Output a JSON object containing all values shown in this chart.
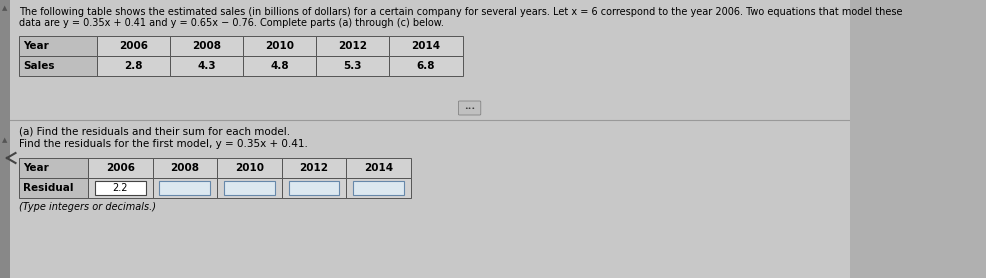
{
  "outer_bg": "#b0b0b0",
  "left_bar_color": "#888888",
  "panel_color": "#c8c8c8",
  "main_bg": "#c0c0c0",
  "table_header_col_bg": "#b8b8b8",
  "table_data_col_bg": "#d0d0d0",
  "table_border": "#555555",
  "text_color": "#000000",
  "title_line1": "The following table shows the estimated sales (in billions of dollars) for a certain company for several years. Let x = 6 correspond to the year 2006. Two equations that model these",
  "title_line2": "data are y = 0.35x + 0.41 and y = 0.65x − 0.76. Complete parts (a) through (c) below.",
  "top_table_headers": [
    "Year",
    "2006",
    "2008",
    "2010",
    "2012",
    "2014"
  ],
  "top_table_row2": [
    "Sales",
    "2.8",
    "4.3",
    "4.8",
    "5.3",
    "6.8"
  ],
  "part_a_text": "(a) Find the residuals and their sum for each model.",
  "find_text": "Find the residuals for the first model, y = 0.35x + 0.41.",
  "bottom_table_headers": [
    "Year",
    "2006",
    "2008",
    "2010",
    "2012",
    "2014"
  ],
  "bottom_table_row2_label": "Residual",
  "bottom_table_filled": "2.2",
  "note_text": "(Type integers or decimals.)",
  "input_box_color": "#dce8f0",
  "input_box_border": "#6688aa",
  "filled_box_color": "#ffffff",
  "filled_box_border": "#555555"
}
